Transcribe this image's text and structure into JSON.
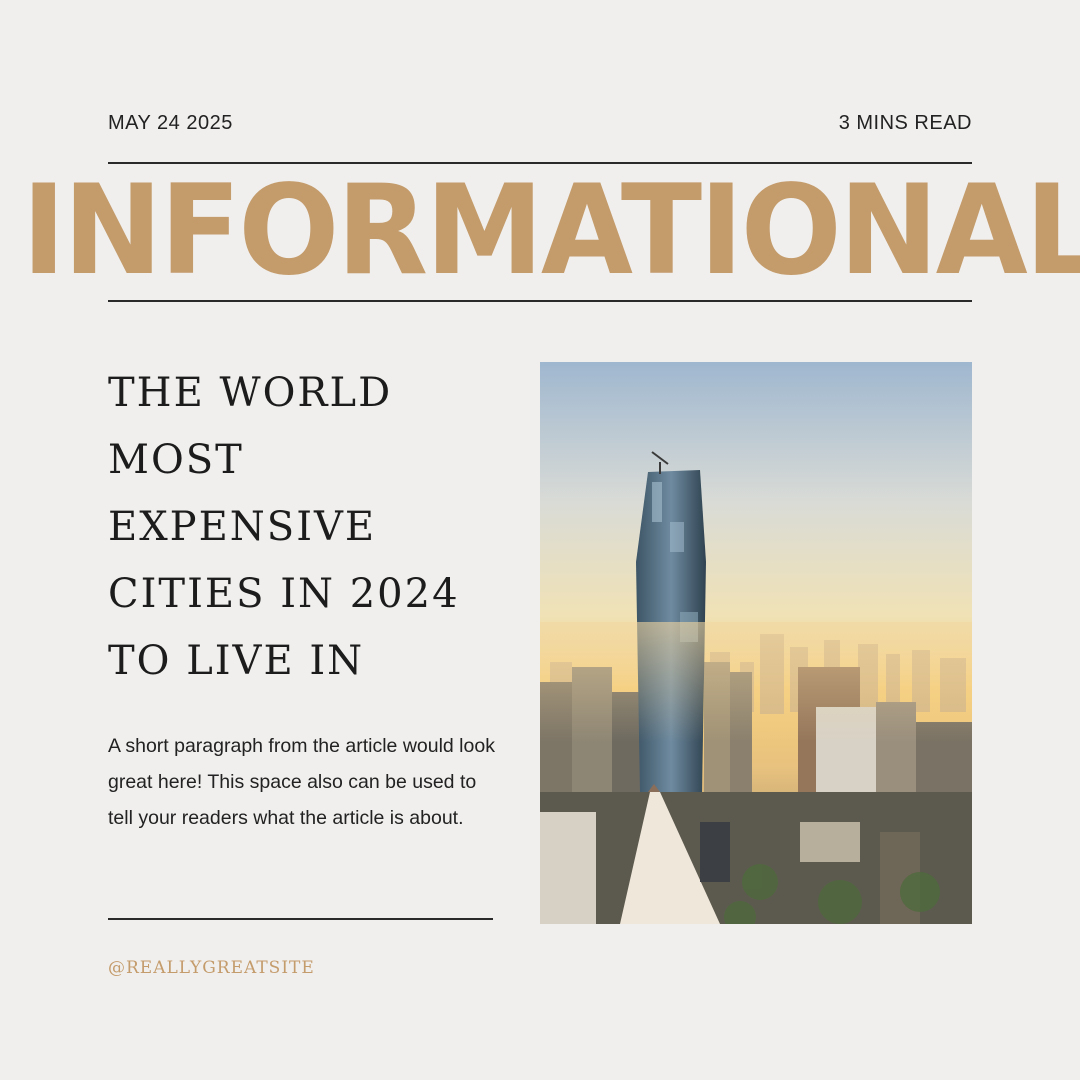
{
  "header": {
    "date": "MAY 24 2025",
    "read_time": "3 MINS READ"
  },
  "masthead": {
    "title": "INFORMATIONAL"
  },
  "article": {
    "headline": "THE WORLD MOST EXPENSIVE CITIES IN 2024 TO LIVE IN",
    "summary": "A short paragraph from the article would look great here! This space also can be used to tell your readers what the article is about."
  },
  "footer": {
    "handle": "@REALLYGREATSITE"
  },
  "colors": {
    "background": "#f0efed",
    "accent": "#c49b6b",
    "text": "#1e1e1e"
  }
}
